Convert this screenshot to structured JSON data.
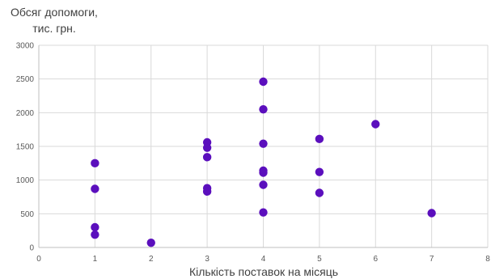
{
  "chart_data": {
    "type": "scatter",
    "ylabel_line1": "Обсяг допомоги,",
    "ylabel_line2": "тис. грн.",
    "xlabel": "Кількість поставок на місяць",
    "xlim": [
      0,
      8
    ],
    "ylim": [
      0,
      3000
    ],
    "x_ticks": [
      0,
      1,
      2,
      3,
      4,
      5,
      6,
      7,
      8
    ],
    "y_ticks": [
      0,
      500,
      1000,
      1500,
      2000,
      2500,
      3000
    ],
    "grid": "vertical and horizontal",
    "marker_color": "#5b0fbd",
    "points": [
      {
        "x": 1,
        "y": 1250
      },
      {
        "x": 1,
        "y": 870
      },
      {
        "x": 1,
        "y": 300
      },
      {
        "x": 1,
        "y": 190
      },
      {
        "x": 2,
        "y": 70
      },
      {
        "x": 3,
        "y": 1560
      },
      {
        "x": 3,
        "y": 1480
      },
      {
        "x": 3,
        "y": 1340
      },
      {
        "x": 3,
        "y": 880
      },
      {
        "x": 3,
        "y": 830
      },
      {
        "x": 4,
        "y": 2460
      },
      {
        "x": 4,
        "y": 2050
      },
      {
        "x": 4,
        "y": 1540
      },
      {
        "x": 4,
        "y": 1140
      },
      {
        "x": 4,
        "y": 1110
      },
      {
        "x": 4,
        "y": 930
      },
      {
        "x": 4,
        "y": 520
      },
      {
        "x": 5,
        "y": 1610
      },
      {
        "x": 5,
        "y": 1120
      },
      {
        "x": 5,
        "y": 810
      },
      {
        "x": 6,
        "y": 1830
      },
      {
        "x": 7,
        "y": 510
      }
    ]
  }
}
